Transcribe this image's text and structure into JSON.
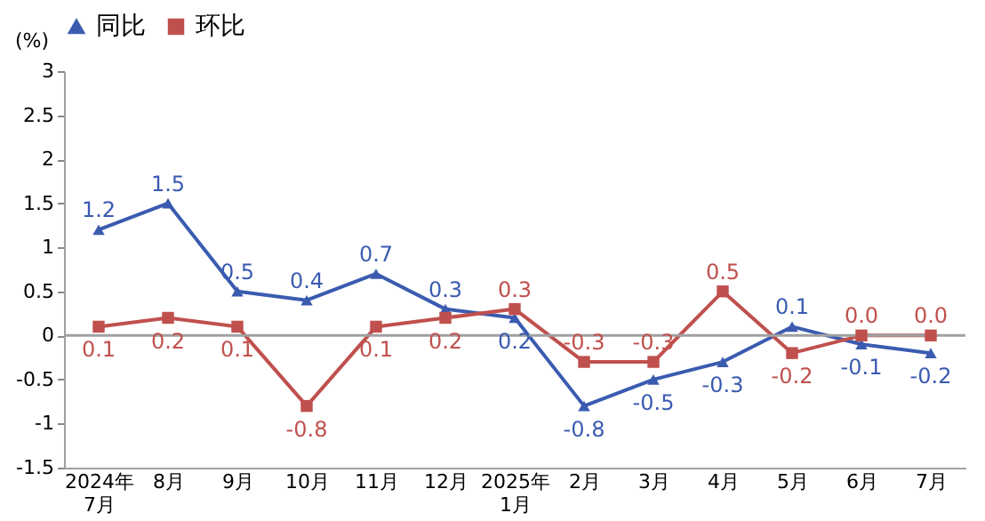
{
  "chart_data": {
    "type": "line",
    "categories": [
      "2024年\n7月",
      "8月",
      "9月",
      "10月",
      "11月",
      "12月",
      "2025年\n1月",
      "2月",
      "3月",
      "4月",
      "5月",
      "6月",
      "7月"
    ],
    "ylabel": "(%)",
    "ylim": [
      -1.5,
      3
    ],
    "yticks": [
      -1.5,
      -1,
      -0.5,
      0,
      0.5,
      1,
      1.5,
      2,
      2.5,
      3
    ],
    "series": [
      {
        "name": "同比",
        "color": "#3a5bb0",
        "marker": "triangle",
        "values": [
          1.2,
          1.5,
          0.5,
          0.4,
          0.7,
          0.3,
          0.2,
          -0.8,
          -0.5,
          -0.3,
          0.1,
          -0.1,
          -0.2
        ],
        "value_labels": [
          "1.2",
          "1.5",
          "0.5",
          "0.4",
          "0.7",
          "0.3",
          "0.2",
          "-0.8",
          "-0.5",
          "-0.3",
          "0.1",
          "-0.1",
          "-0.2"
        ]
      },
      {
        "name": "环比",
        "color": "#c0504d",
        "marker": "square",
        "values": [
          0.1,
          0.2,
          0.1,
          -0.8,
          0.1,
          0.2,
          0.3,
          -0.3,
          -0.3,
          0.5,
          -0.2,
          0.0,
          0.0
        ],
        "value_labels": [
          "0.1",
          "0.2",
          "0.1",
          "-0.8",
          "0.1",
          "0.2",
          "0.3",
          "-0.3",
          "-0.3",
          "0.5",
          "-0.2",
          "0.0",
          "0.0"
        ]
      }
    ],
    "ref_lines": [
      {
        "axis": "y",
        "value": 0,
        "color": "#a0a0a0"
      }
    ],
    "legend": "top",
    "grid": false,
    "line_style": "solid"
  }
}
